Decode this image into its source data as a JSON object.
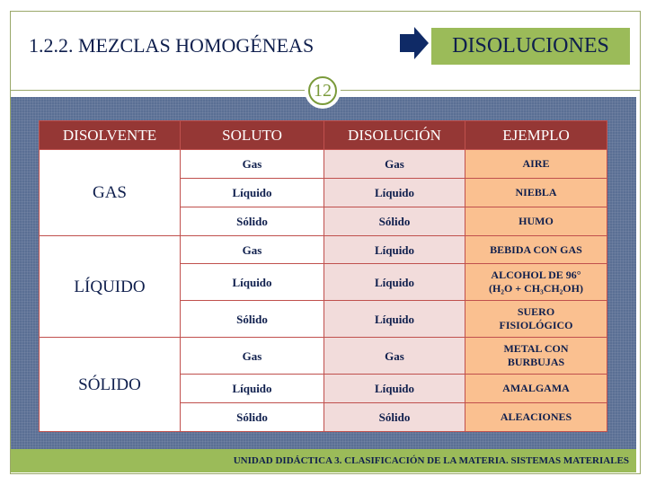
{
  "header": {
    "title": "1.2.2. MEZCLAS HOMOGÉNEAS",
    "target": "DISOLUCIONES",
    "page_number": "12"
  },
  "table": {
    "columns": [
      "DISOLVENTE",
      "SOLUTO",
      "DISOLUCIÓN",
      "EJEMPLO"
    ],
    "groups": [
      {
        "solvent": "GAS",
        "rows": [
          {
            "soluto": "Gas",
            "disolucion": "Gas",
            "ejemplo": "AIRE"
          },
          {
            "soluto": "Líquido",
            "disolucion": "Líquido",
            "ejemplo": "NIEBLA"
          },
          {
            "soluto": "Sólido",
            "disolucion": "Sólido",
            "ejemplo": "HUMO"
          }
        ]
      },
      {
        "solvent": "LÍQUIDO",
        "rows": [
          {
            "soluto": "Gas",
            "disolucion": "Líquido",
            "ejemplo": "BEBIDA CON GAS"
          },
          {
            "soluto": "Líquido",
            "disolucion": "Líquido",
            "ejemplo": "ALCOHOL DE 96°",
            "ejemplo2": "(H₂O + CH₃CH₂OH)"
          },
          {
            "soluto": "Sólido",
            "disolucion": "Líquido",
            "ejemplo": "SUERO",
            "ejemplo2": "FISIOLÓGICO"
          }
        ]
      },
      {
        "solvent": "SÓLIDO",
        "rows": [
          {
            "soluto": "Gas",
            "disolucion": "Gas",
            "ejemplo": "METAL CON",
            "ejemplo2": "BURBUJAS"
          },
          {
            "soluto": "Líquido",
            "disolucion": "Líquido",
            "ejemplo": "AMALGAMA"
          },
          {
            "soluto": "Sólido",
            "disolucion": "Sólido",
            "ejemplo": "ALEACIONES"
          }
        ]
      }
    ]
  },
  "footer": "UNIDAD DIDÁCTICA 3. CLASIFICACIÓN DE LA MATERIA. SISTEMAS MATERIALES",
  "colors": {
    "header_row": "#953735",
    "disolucion_col": "#f2dcdb",
    "ejemplo_col": "#fac090",
    "accent_green": "#9bbb59",
    "panel": "#5a6f94",
    "text": "#0f1f4d"
  }
}
